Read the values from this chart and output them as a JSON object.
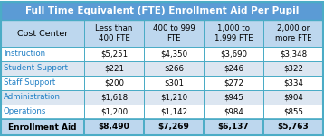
{
  "title": "Full Time Equivalent (FTE) Enrollment Aid Per Pupil",
  "title_bg": "#5B9BD5",
  "title_fg": "#FFFFFF",
  "header_bg": "#BDD7EE",
  "header_fg": "#000000",
  "col_header": "Cost Center",
  "columns": [
    "Less than\n400 FTE",
    "400 to 999\nFTE",
    "1,000 to\n1,999 FTE",
    "2,000 or\nmore FTE"
  ],
  "rows": [
    {
      "label": "Instruction",
      "values": [
        "$5,251",
        "$4,350",
        "$3,690",
        "$3,348"
      ],
      "label_color": "#1F7FC4",
      "bg": "#FFFFFF"
    },
    {
      "label": "Student Support",
      "values": [
        "$221",
        "$266",
        "$246",
        "$322"
      ],
      "label_color": "#1F7FC4",
      "bg": "#DCE6F1"
    },
    {
      "label": "Staff Support",
      "values": [
        "$200",
        "$301",
        "$272",
        "$334"
      ],
      "label_color": "#1F7FC4",
      "bg": "#FFFFFF"
    },
    {
      "label": "Administration",
      "values": [
        "$1,618",
        "$1,210",
        "$945",
        "$904"
      ],
      "label_color": "#1F7FC4",
      "bg": "#DCE6F1"
    },
    {
      "label": "Operations",
      "values": [
        "$1,200",
        "$1,142",
        "$984",
        "$855"
      ],
      "label_color": "#1F7FC4",
      "bg": "#FFFFFF"
    }
  ],
  "footer_label": "Enrollment Aid",
  "footer_values": [
    "$8,490",
    "$7,269",
    "$6,137",
    "$5,763"
  ],
  "footer_bg": "#BDD7EE",
  "footer_fg": "#000000",
  "border_color": "#4BACC6",
  "value_color": "#000000",
  "fig_w": 3.58,
  "fig_h": 1.52,
  "dpi": 100
}
